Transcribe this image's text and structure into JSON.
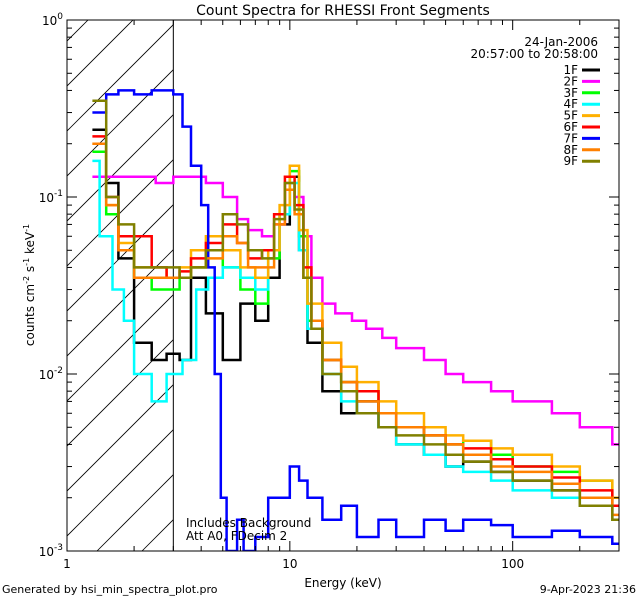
{
  "chart_data": {
    "type": "line",
    "title": "Count Spectra for RHESSI Front Segments",
    "xlabel": "Energy (keV)",
    "ylabel_base": "counts cm",
    "ylabel_parts": {
      "base": "counts cm",
      "e1": "-2",
      "s": " s",
      "e2": "-1",
      "k": " keV",
      "e3": "-1"
    },
    "xscale": "log",
    "yscale": "log",
    "xlim": [
      1,
      300
    ],
    "ylim": [
      0.001,
      1
    ],
    "x_ticks": [
      {
        "value": 1,
        "label": "1"
      },
      {
        "value": 10,
        "label": "10"
      },
      {
        "value": 100,
        "label": "100"
      }
    ],
    "y_ticks": [
      {
        "value": 0.001,
        "base": "10",
        "exp": "-3"
      },
      {
        "value": 0.01,
        "base": "10",
        "exp": "-2"
      },
      {
        "value": 0.1,
        "base": "10",
        "exp": "-1"
      },
      {
        "value": 1,
        "base": "10",
        "exp": "0"
      }
    ],
    "date": "24-Jan-2006",
    "time_range": "20:57:00 to 20:58:00",
    "hatched_region_end_kev": 3,
    "annotation_lines": [
      "Includes Background",
      "Att A0, FDecim 2"
    ],
    "legend_placement": "top-right",
    "series": [
      {
        "name": "1F",
        "color": "#000000",
        "points": [
          [
            1.3,
            0.24
          ],
          [
            1.5,
            0.12
          ],
          [
            1.7,
            0.045
          ],
          [
            2.0,
            0.015
          ],
          [
            2.4,
            0.012
          ],
          [
            2.8,
            0.013
          ],
          [
            3.2,
            0.012
          ],
          [
            3.6,
            0.035
          ],
          [
            4.2,
            0.022
          ],
          [
            5.0,
            0.012
          ],
          [
            6.0,
            0.025
          ],
          [
            7.0,
            0.02
          ],
          [
            8.0,
            0.035
          ],
          [
            9.0,
            0.07
          ],
          [
            10.0,
            0.13
          ],
          [
            11.0,
            0.05
          ],
          [
            12.0,
            0.015
          ],
          [
            14,
            0.008
          ],
          [
            17,
            0.006
          ],
          [
            20,
            0.007
          ],
          [
            25,
            0.005
          ],
          [
            30,
            0.004
          ],
          [
            40,
            0.0035
          ],
          [
            50,
            0.003
          ],
          [
            60,
            0.0032
          ],
          [
            80,
            0.0028
          ],
          [
            100,
            0.0025
          ],
          [
            150,
            0.0022
          ],
          [
            200,
            0.002
          ],
          [
            280,
            0.0015
          ]
        ]
      },
      {
        "name": "2F",
        "color": "#ff00ff",
        "points": [
          [
            1.3,
            0.13
          ],
          [
            1.6,
            0.13
          ],
          [
            2.0,
            0.13
          ],
          [
            2.5,
            0.12
          ],
          [
            3.0,
            0.13
          ],
          [
            3.5,
            0.13
          ],
          [
            4.2,
            0.12
          ],
          [
            5.0,
            0.1
          ],
          [
            5.8,
            0.075
          ],
          [
            6.5,
            0.065
          ],
          [
            7.5,
            0.06
          ],
          [
            8.5,
            0.07
          ],
          [
            9.5,
            0.12
          ],
          [
            10.5,
            0.1
          ],
          [
            11.5,
            0.06
          ],
          [
            12.5,
            0.035
          ],
          [
            14,
            0.025
          ],
          [
            16,
            0.022
          ],
          [
            19,
            0.02
          ],
          [
            22,
            0.018
          ],
          [
            26,
            0.016
          ],
          [
            30,
            0.014
          ],
          [
            40,
            0.012
          ],
          [
            50,
            0.01
          ],
          [
            60,
            0.009
          ],
          [
            80,
            0.008
          ],
          [
            100,
            0.007
          ],
          [
            150,
            0.006
          ],
          [
            200,
            0.005
          ],
          [
            280,
            0.004
          ]
        ]
      },
      {
        "name": "3F",
        "color": "#00ff00",
        "points": [
          [
            1.3,
            0.18
          ],
          [
            1.5,
            0.08
          ],
          [
            1.7,
            0.06
          ],
          [
            2.0,
            0.035
          ],
          [
            2.4,
            0.03
          ],
          [
            2.8,
            0.03
          ],
          [
            3.2,
            0.035
          ],
          [
            3.6,
            0.04
          ],
          [
            4.2,
            0.05
          ],
          [
            5.0,
            0.04
          ],
          [
            6.0,
            0.03
          ],
          [
            7.0,
            0.025
          ],
          [
            8.0,
            0.045
          ],
          [
            9.0,
            0.08
          ],
          [
            10.0,
            0.14
          ],
          [
            11.0,
            0.06
          ],
          [
            12.0,
            0.02
          ],
          [
            14,
            0.012
          ],
          [
            17,
            0.009
          ],
          [
            20,
            0.008
          ],
          [
            25,
            0.006
          ],
          [
            30,
            0.005
          ],
          [
            40,
            0.0045
          ],
          [
            50,
            0.004
          ],
          [
            60,
            0.0042
          ],
          [
            80,
            0.0035
          ],
          [
            100,
            0.003
          ],
          [
            150,
            0.0028
          ],
          [
            200,
            0.0025
          ],
          [
            280,
            0.002
          ]
        ]
      },
      {
        "name": "4F",
        "color": "#00ffff",
        "points": [
          [
            1.3,
            0.16
          ],
          [
            1.4,
            0.06
          ],
          [
            1.6,
            0.03
          ],
          [
            1.8,
            0.02
          ],
          [
            2.0,
            0.01
          ],
          [
            2.4,
            0.007
          ],
          [
            2.8,
            0.01
          ],
          [
            3.3,
            0.012
          ],
          [
            3.8,
            0.03
          ],
          [
            4.3,
            0.035
          ],
          [
            5.0,
            0.04
          ],
          [
            6.0,
            0.035
          ],
          [
            7.0,
            0.03
          ],
          [
            8.0,
            0.05
          ],
          [
            9.0,
            0.08
          ],
          [
            10.0,
            0.12
          ],
          [
            11.0,
            0.05
          ],
          [
            12.0,
            0.018
          ],
          [
            14,
            0.01
          ],
          [
            17,
            0.007
          ],
          [
            20,
            0.006
          ],
          [
            25,
            0.005
          ],
          [
            30,
            0.004
          ],
          [
            40,
            0.0035
          ],
          [
            50,
            0.003
          ],
          [
            60,
            0.0028
          ],
          [
            80,
            0.0025
          ],
          [
            100,
            0.0022
          ],
          [
            150,
            0.002
          ],
          [
            200,
            0.0018
          ],
          [
            280,
            0.0015
          ]
        ]
      },
      {
        "name": "5F",
        "color": "#ffb000",
        "points": [
          [
            1.3,
            0.2
          ],
          [
            1.5,
            0.09
          ],
          [
            1.7,
            0.055
          ],
          [
            2.0,
            0.04
          ],
          [
            2.4,
            0.04
          ],
          [
            2.8,
            0.035
          ],
          [
            3.2,
            0.04
          ],
          [
            3.6,
            0.05
          ],
          [
            4.2,
            0.06
          ],
          [
            5.0,
            0.05
          ],
          [
            6.0,
            0.04
          ],
          [
            7.0,
            0.035
          ],
          [
            8.0,
            0.05
          ],
          [
            9.0,
            0.09
          ],
          [
            10.0,
            0.15
          ],
          [
            11.0,
            0.065
          ],
          [
            12.0,
            0.025
          ],
          [
            14,
            0.015
          ],
          [
            17,
            0.011
          ],
          [
            20,
            0.009
          ],
          [
            25,
            0.007
          ],
          [
            30,
            0.006
          ],
          [
            40,
            0.005
          ],
          [
            50,
            0.0045
          ],
          [
            60,
            0.0042
          ],
          [
            80,
            0.0038
          ],
          [
            100,
            0.0035
          ],
          [
            150,
            0.003
          ],
          [
            200,
            0.0025
          ],
          [
            280,
            0.002
          ]
        ]
      },
      {
        "name": "6F",
        "color": "#ff0000",
        "points": [
          [
            1.3,
            0.22
          ],
          [
            1.5,
            0.1
          ],
          [
            1.7,
            0.06
          ],
          [
            2.0,
            0.06
          ],
          [
            2.4,
            0.04
          ],
          [
            2.8,
            0.035
          ],
          [
            3.2,
            0.038
          ],
          [
            3.6,
            0.045
          ],
          [
            4.2,
            0.055
          ],
          [
            5.0,
            0.07
          ],
          [
            5.8,
            0.055
          ],
          [
            6.5,
            0.045
          ],
          [
            7.5,
            0.05
          ],
          [
            8.5,
            0.08
          ],
          [
            9.5,
            0.13
          ],
          [
            10.5,
            0.09
          ],
          [
            11.5,
            0.04
          ],
          [
            12.5,
            0.02
          ],
          [
            14,
            0.012
          ],
          [
            17,
            0.009
          ],
          [
            20,
            0.008
          ],
          [
            25,
            0.006
          ],
          [
            30,
            0.005
          ],
          [
            40,
            0.0045
          ],
          [
            50,
            0.004
          ],
          [
            60,
            0.0038
          ],
          [
            80,
            0.0033
          ],
          [
            100,
            0.003
          ],
          [
            150,
            0.0026
          ],
          [
            200,
            0.0022
          ],
          [
            280,
            0.0018
          ]
        ]
      },
      {
        "name": "7F",
        "color": "#0000ff",
        "points": [
          [
            1.3,
            0.3
          ],
          [
            1.5,
            0.38
          ],
          [
            1.7,
            0.4
          ],
          [
            2.0,
            0.38
          ],
          [
            2.4,
            0.4
          ],
          [
            2.8,
            0.4
          ],
          [
            3.0,
            0.38
          ],
          [
            3.3,
            0.25
          ],
          [
            3.6,
            0.15
          ],
          [
            4.0,
            0.09
          ],
          [
            4.3,
            0.04
          ],
          [
            4.6,
            0.01
          ],
          [
            4.9,
            0.002
          ],
          [
            5.2,
            0.001
          ],
          [
            5.8,
            0.0015
          ],
          [
            6.2,
            0.001
          ],
          [
            7.0,
            0.0012
          ],
          [
            8.0,
            0.002
          ],
          [
            9.0,
            0.002
          ],
          [
            10.0,
            0.003
          ],
          [
            11.0,
            0.0025
          ],
          [
            12.0,
            0.002
          ],
          [
            14,
            0.0015
          ],
          [
            17,
            0.0018
          ],
          [
            20,
            0.0012
          ],
          [
            25,
            0.0015
          ],
          [
            30,
            0.0012
          ],
          [
            40,
            0.0015
          ],
          [
            50,
            0.0013
          ],
          [
            60,
            0.0015
          ],
          [
            80,
            0.0014
          ],
          [
            100,
            0.0012
          ],
          [
            150,
            0.0013
          ],
          [
            200,
            0.0012
          ],
          [
            280,
            0.0011
          ]
        ]
      },
      {
        "name": "8F",
        "color": "#ff8000",
        "points": [
          [
            1.3,
            0.2
          ],
          [
            1.5,
            0.09
          ],
          [
            1.7,
            0.05
          ],
          [
            2.0,
            0.035
          ],
          [
            2.4,
            0.035
          ],
          [
            2.8,
            0.035
          ],
          [
            3.2,
            0.035
          ],
          [
            3.6,
            0.04
          ],
          [
            4.2,
            0.045
          ],
          [
            5.0,
            0.06
          ],
          [
            5.8,
            0.055
          ],
          [
            6.5,
            0.04
          ],
          [
            7.5,
            0.04
          ],
          [
            8.5,
            0.07
          ],
          [
            9.5,
            0.11
          ],
          [
            10.5,
            0.08
          ],
          [
            11.5,
            0.035
          ],
          [
            12.5,
            0.02
          ],
          [
            14,
            0.012
          ],
          [
            17,
            0.009
          ],
          [
            20,
            0.007
          ],
          [
            25,
            0.006
          ],
          [
            30,
            0.005
          ],
          [
            40,
            0.0045
          ],
          [
            50,
            0.004
          ],
          [
            60,
            0.0035
          ],
          [
            80,
            0.003
          ],
          [
            100,
            0.0028
          ],
          [
            150,
            0.0024
          ],
          [
            200,
            0.002
          ],
          [
            280,
            0.0016
          ]
        ]
      },
      {
        "name": "9F",
        "color": "#808000",
        "points": [
          [
            1.3,
            0.35
          ],
          [
            1.5,
            0.1
          ],
          [
            1.7,
            0.07
          ],
          [
            2.0,
            0.04
          ],
          [
            2.4,
            0.04
          ],
          [
            2.8,
            0.04
          ],
          [
            3.2,
            0.035
          ],
          [
            3.6,
            0.04
          ],
          [
            4.2,
            0.05
          ],
          [
            5.0,
            0.08
          ],
          [
            5.8,
            0.07
          ],
          [
            6.5,
            0.05
          ],
          [
            7.5,
            0.045
          ],
          [
            8.5,
            0.075
          ],
          [
            9.5,
            0.12
          ],
          [
            10.5,
            0.085
          ],
          [
            11.5,
            0.035
          ],
          [
            12.5,
            0.018
          ],
          [
            14,
            0.01
          ],
          [
            17,
            0.008
          ],
          [
            20,
            0.006
          ],
          [
            25,
            0.005
          ],
          [
            30,
            0.0045
          ],
          [
            40,
            0.004
          ],
          [
            50,
            0.0035
          ],
          [
            60,
            0.0032
          ],
          [
            80,
            0.0028
          ],
          [
            100,
            0.0025
          ],
          [
            150,
            0.0022
          ],
          [
            200,
            0.0018
          ],
          [
            280,
            0.0015
          ]
        ]
      }
    ]
  },
  "footer": {
    "left": "Generated by hsi_min_spectra_plot.pro",
    "right": "9-Apr-2023 21:36"
  }
}
